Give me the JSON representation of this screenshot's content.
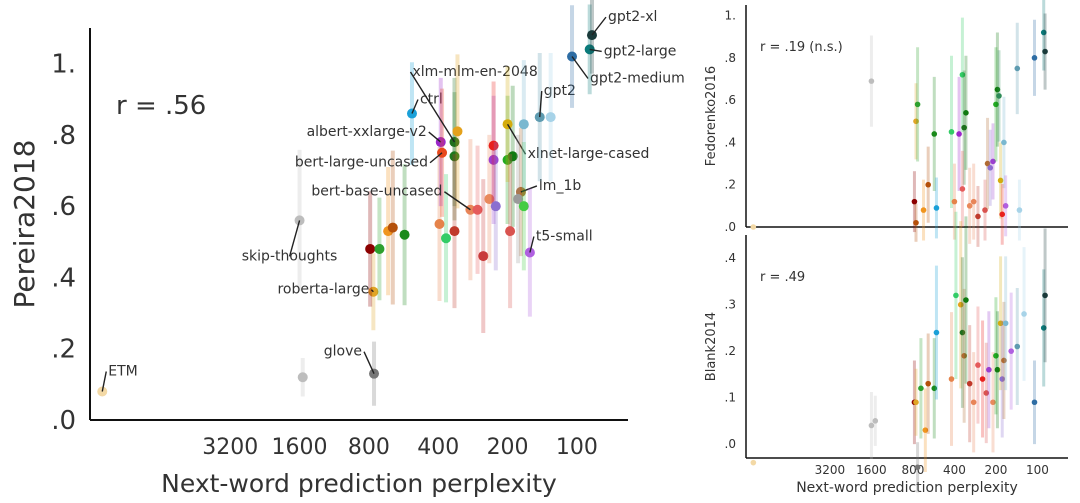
{
  "chart_data": [
    {
      "type": "scatter",
      "title": "",
      "xlabel": "Next-word prediction perplexity",
      "ylabel": "Pereira2018",
      "x_scale": "log-reversed",
      "x_ticks": [
        3200,
        1600,
        800,
        400,
        200,
        100
      ],
      "x_tick_labels": [
        "3200",
        "1600",
        "800",
        "400",
        "200",
        "100"
      ],
      "xlim": [
        13000,
        60
      ],
      "ylim": [
        0,
        1.1
      ],
      "y_ticks": [
        0,
        0.2,
        0.4,
        0.6,
        0.8,
        1.0
      ],
      "y_tick_labels": [
        ".0",
        ".2",
        ".4",
        ".6",
        ".8",
        "1."
      ],
      "annotation": "r = .56",
      "points": [
        {
          "x": 11500,
          "y": 0.08,
          "err": 0,
          "color": "#f3d9a6",
          "label": "ETM"
        },
        {
          "x": 1550,
          "y": 0.12,
          "err": 0.03,
          "color": "#bdbdbd",
          "label": ""
        },
        {
          "x": 1600,
          "y": 0.56,
          "err": 0.11,
          "color": "#bdbdbd",
          "label": "skip-thoughts"
        },
        {
          "x": 760,
          "y": 0.13,
          "err": 0.05,
          "color": "#777777",
          "label": "glove"
        },
        {
          "x": 765,
          "y": 0.36,
          "err": 0.06,
          "color": "#e0a526",
          "label": "roberta-large"
        },
        {
          "x": 790,
          "y": 0.48,
          "err": 0.09,
          "color": "#8b0000",
          "label": ""
        },
        {
          "x": 720,
          "y": 0.48,
          "err": 0.08,
          "color": "#2ea02e",
          "label": ""
        },
        {
          "x": 660,
          "y": 0.53,
          "err": 0.1,
          "color": "#f0951e",
          "label": ""
        },
        {
          "x": 630,
          "y": 0.54,
          "err": 0.12,
          "color": "#b4500a",
          "label": ""
        },
        {
          "x": 560,
          "y": 0.52,
          "err": 0.11,
          "color": "#1b8a1b",
          "label": ""
        },
        {
          "x": 520,
          "y": 0.86,
          "err": 0.08,
          "color": "#1aa0d8",
          "label": "ctrl"
        },
        {
          "x": 395,
          "y": 0.55,
          "err": 0.12,
          "color": "#e5834a",
          "label": ""
        },
        {
          "x": 370,
          "y": 0.51,
          "err": 0.1,
          "color": "#33cc66",
          "label": ""
        },
        {
          "x": 390,
          "y": 0.78,
          "err": 0.1,
          "color": "#9b27c9",
          "label": "albert-xxlarge-v2"
        },
        {
          "x": 385,
          "y": 0.75,
          "err": 0.1,
          "color": "#e8491d",
          "label": "bert-large-uncased"
        },
        {
          "x": 340,
          "y": 0.74,
          "err": 0.1,
          "color": "#1f7a1f",
          "label": ""
        },
        {
          "x": 340,
          "y": 0.78,
          "err": 0.1,
          "color": "#1f6f1f",
          "label": "xlm-mlm-en-2048"
        },
        {
          "x": 330,
          "y": 0.81,
          "err": 0.12,
          "color": "#e4a11b",
          "label": ""
        },
        {
          "x": 340,
          "y": 0.53,
          "err": 0.12,
          "color": "#c0392b",
          "label": ""
        },
        {
          "x": 290,
          "y": 0.59,
          "err": 0.11,
          "color": "#e88458",
          "label": "bert-base-uncased"
        },
        {
          "x": 270,
          "y": 0.59,
          "err": 0.1,
          "color": "#e55b5b",
          "label": ""
        },
        {
          "x": 255,
          "y": 0.46,
          "err": 0.12,
          "color": "#c83b3b",
          "label": ""
        },
        {
          "x": 240,
          "y": 0.62,
          "err": 0.1,
          "color": "#e9895c",
          "label": ""
        },
        {
          "x": 230,
          "y": 0.73,
          "err": 0.1,
          "color": "#9b3fd0",
          "label": ""
        },
        {
          "x": 230,
          "y": 0.77,
          "err": 0.1,
          "color": "#e8211d",
          "label": ""
        },
        {
          "x": 225,
          "y": 0.6,
          "err": 0.1,
          "color": "#8b6fd0",
          "label": ""
        },
        {
          "x": 200,
          "y": 0.73,
          "err": 0.1,
          "color": "#22aa22",
          "label": ""
        },
        {
          "x": 190,
          "y": 0.74,
          "err": 0.11,
          "color": "#117a11",
          "label": ""
        },
        {
          "x": 195,
          "y": 0.53,
          "err": 0.12,
          "color": "#d9534f",
          "label": ""
        },
        {
          "x": 200,
          "y": 0.83,
          "err": 0.09,
          "color": "#d4ac0d",
          "label": "xlnet-large-cased"
        },
        {
          "x": 175,
          "y": 0.64,
          "err": 0.1,
          "color": "#b06a32",
          "label": "lm_1b"
        },
        {
          "x": 180,
          "y": 0.62,
          "err": 0.1,
          "color": "#9a9a9a",
          "label": ""
        },
        {
          "x": 170,
          "y": 0.6,
          "err": 0.1,
          "color": "#44cc44",
          "label": ""
        },
        {
          "x": 160,
          "y": 0.47,
          "err": 0.1,
          "color": "#b060e0",
          "label": "t5-small"
        },
        {
          "x": 170,
          "y": 0.83,
          "err": 0.1,
          "color": "#7ab8d0",
          "label": ""
        },
        {
          "x": 145,
          "y": 0.85,
          "err": 0.1,
          "color": "#5e9bb0",
          "label": "gpt2"
        },
        {
          "x": 130,
          "y": 0.85,
          "err": 0.1,
          "color": "#a7d3e8",
          "label": ""
        },
        {
          "x": 105,
          "y": 1.02,
          "err": 0.08,
          "color": "#2e6da4",
          "label": "gpt2-medium"
        },
        {
          "x": 88,
          "y": 1.04,
          "err": 0.07,
          "color": "#0a7a7a",
          "label": "gpt2-large"
        },
        {
          "x": 86,
          "y": 1.08,
          "err": 0.06,
          "color": "#1a3a3a",
          "label": "gpt2-xl"
        }
      ]
    },
    {
      "type": "scatter",
      "title": "",
      "xlabel": "",
      "ylabel": "Fedorenko2016",
      "x_scale": "log-reversed",
      "xlim": [
        13000,
        60
      ],
      "ylim": [
        0,
        1.05
      ],
      "y_ticks": [
        0,
        0.2,
        0.4,
        0.6,
        0.8,
        1.0
      ],
      "y_tick_labels": [
        ".0",
        ".2",
        ".4",
        ".6",
        ".8",
        "1."
      ],
      "annotation": "r = .19 (n.s.)",
      "points": [
        {
          "x": 11500,
          "y": 0.0,
          "err": 0.0,
          "color": "#f3d9a6"
        },
        {
          "x": 1600,
          "y": 0.69,
          "err": 0.12,
          "color": "#bdbdbd"
        },
        {
          "x": 760,
          "y": 0.5,
          "err": 0.1,
          "color": "#e0a526"
        },
        {
          "x": 780,
          "y": 0.12,
          "err": 0.08,
          "color": "#8b0000"
        },
        {
          "x": 740,
          "y": 0.58,
          "err": 0.15,
          "color": "#2ea02e"
        },
        {
          "x": 760,
          "y": 0.02,
          "err": 0.05,
          "color": "#b4500a"
        },
        {
          "x": 670,
          "y": 0.08,
          "err": 0.08,
          "color": "#f0951e"
        },
        {
          "x": 620,
          "y": 0.2,
          "err": 0.1,
          "color": "#b4500a"
        },
        {
          "x": 560,
          "y": 0.44,
          "err": 0.15,
          "color": "#1b8a1b"
        },
        {
          "x": 540,
          "y": 0.09,
          "err": 0.08,
          "color": "#1aa0d8"
        },
        {
          "x": 420,
          "y": 0.45,
          "err": 0.2,
          "color": "#33cc66"
        },
        {
          "x": 400,
          "y": 0.12,
          "err": 0.1,
          "color": "#e5834a"
        },
        {
          "x": 370,
          "y": 0.44,
          "err": 0.15,
          "color": "#9b27c9"
        },
        {
          "x": 350,
          "y": 0.72,
          "err": 0.15,
          "color": "#33cc66"
        },
        {
          "x": 340,
          "y": 0.47,
          "err": 0.15,
          "color": "#1f6f1f"
        },
        {
          "x": 330,
          "y": 0.54,
          "err": 0.15,
          "color": "#117a11"
        },
        {
          "x": 350,
          "y": 0.18,
          "err": 0.1,
          "color": "#e55b5b"
        },
        {
          "x": 310,
          "y": 0.1,
          "err": 0.1,
          "color": "#e9895c"
        },
        {
          "x": 290,
          "y": 0.12,
          "err": 0.1,
          "color": "#e88458"
        },
        {
          "x": 270,
          "y": 0.05,
          "err": 0.08,
          "color": "#c0392b"
        },
        {
          "x": 240,
          "y": 0.08,
          "err": 0.08,
          "color": "#d9534f"
        },
        {
          "x": 230,
          "y": 0.3,
          "err": 0.12,
          "color": "#b06a32"
        },
        {
          "x": 220,
          "y": 0.28,
          "err": 0.1,
          "color": "#8b6fd0"
        },
        {
          "x": 210,
          "y": 0.31,
          "err": 0.1,
          "color": "#9b3fd0"
        },
        {
          "x": 200,
          "y": 0.58,
          "err": 0.15,
          "color": "#22aa22"
        },
        {
          "x": 195,
          "y": 0.65,
          "err": 0.15,
          "color": "#117a11"
        },
        {
          "x": 190,
          "y": 0.62,
          "err": 0.12,
          "color": "#2e8b57"
        },
        {
          "x": 185,
          "y": 0.22,
          "err": 0.1,
          "color": "#d4ac0d"
        },
        {
          "x": 175,
          "y": 0.4,
          "err": 0.12,
          "color": "#7ab8d0"
        },
        {
          "x": 170,
          "y": 0.1,
          "err": 0.08,
          "color": "#b060e0"
        },
        {
          "x": 180,
          "y": 0.06,
          "err": 0.08,
          "color": "#e8211d"
        },
        {
          "x": 140,
          "y": 0.75,
          "err": 0.12,
          "color": "#5e9bb0"
        },
        {
          "x": 135,
          "y": 0.08,
          "err": 0.08,
          "color": "#a7d3e8"
        },
        {
          "x": 105,
          "y": 0.8,
          "err": 0.1,
          "color": "#2e6da4"
        },
        {
          "x": 90,
          "y": 0.92,
          "err": 0.1,
          "color": "#0a7a7a"
        },
        {
          "x": 88,
          "y": 0.83,
          "err": 0.1,
          "color": "#1a3a3a"
        }
      ]
    },
    {
      "type": "scatter",
      "title": "",
      "xlabel": "Next-word prediction perplexity",
      "ylabel": "Blank2014",
      "x_scale": "log-reversed",
      "x_ticks": [
        3200,
        1600,
        800,
        400,
        200,
        100
      ],
      "x_tick_labels": [
        "3200",
        "1600",
        "800",
        "400",
        "200",
        "100"
      ],
      "xlim": [
        13000,
        60
      ],
      "ylim": [
        -0.03,
        0.45
      ],
      "y_ticks": [
        0,
        0.1,
        0.2,
        0.3,
        0.4
      ],
      "y_tick_labels": [
        ".0",
        ".1",
        ".2",
        ".3",
        ".4"
      ],
      "annotation": "r = .49",
      "points": [
        {
          "x": 11500,
          "y": -0.04,
          "err": 0.0,
          "color": "#f3d9a6"
        },
        {
          "x": 1600,
          "y": 0.04,
          "err": 0.04,
          "color": "#bdbdbd"
        },
        {
          "x": 1500,
          "y": 0.05,
          "err": 0.03,
          "color": "#bdbdbd"
        },
        {
          "x": 780,
          "y": 0.09,
          "err": 0.05,
          "color": "#8b0000"
        },
        {
          "x": 760,
          "y": 0.09,
          "err": 0.04,
          "color": "#e0a526"
        },
        {
          "x": 740,
          "y": -0.05,
          "err": 0.03,
          "color": "#777777"
        },
        {
          "x": 700,
          "y": 0.12,
          "err": 0.06,
          "color": "#2ea02e"
        },
        {
          "x": 650,
          "y": 0.03,
          "err": 0.05,
          "color": "#f0951e"
        },
        {
          "x": 620,
          "y": 0.13,
          "err": 0.06,
          "color": "#b4500a"
        },
        {
          "x": 560,
          "y": 0.12,
          "err": 0.06,
          "color": "#1b8a1b"
        },
        {
          "x": 540,
          "y": 0.24,
          "err": 0.08,
          "color": "#1aa0d8"
        },
        {
          "x": 420,
          "y": 0.14,
          "err": 0.08,
          "color": "#e5834a"
        },
        {
          "x": 390,
          "y": 0.32,
          "err": 0.1,
          "color": "#33cc66"
        },
        {
          "x": 360,
          "y": 0.3,
          "err": 0.1,
          "color": "#e4a11b"
        },
        {
          "x": 350,
          "y": 0.24,
          "err": 0.09,
          "color": "#1f6f1f"
        },
        {
          "x": 340,
          "y": 0.19,
          "err": 0.08,
          "color": "#b06a32"
        },
        {
          "x": 330,
          "y": 0.31,
          "err": 0.1,
          "color": "#117a11"
        },
        {
          "x": 310,
          "y": 0.13,
          "err": 0.07,
          "color": "#c0392b"
        },
        {
          "x": 290,
          "y": 0.09,
          "err": 0.06,
          "color": "#e88458"
        },
        {
          "x": 270,
          "y": 0.17,
          "err": 0.07,
          "color": "#e55b5b"
        },
        {
          "x": 250,
          "y": 0.14,
          "err": 0.07,
          "color": "#e8211d"
        },
        {
          "x": 235,
          "y": 0.11,
          "err": 0.06,
          "color": "#d9534f"
        },
        {
          "x": 225,
          "y": 0.16,
          "err": 0.07,
          "color": "#9b3fd0"
        },
        {
          "x": 210,
          "y": 0.09,
          "err": 0.06,
          "color": "#e9895c"
        },
        {
          "x": 200,
          "y": 0.19,
          "err": 0.07,
          "color": "#22aa22"
        },
        {
          "x": 195,
          "y": 0.16,
          "err": 0.07,
          "color": "#117a11"
        },
        {
          "x": 185,
          "y": 0.26,
          "err": 0.08,
          "color": "#d4ac0d"
        },
        {
          "x": 180,
          "y": 0.14,
          "err": 0.07,
          "color": "#8b6fd0"
        },
        {
          "x": 175,
          "y": 0.18,
          "err": 0.07,
          "color": "#b06a32"
        },
        {
          "x": 170,
          "y": 0.26,
          "err": 0.08,
          "color": "#7ab8d0"
        },
        {
          "x": 155,
          "y": 0.2,
          "err": 0.07,
          "color": "#b060e0"
        },
        {
          "x": 140,
          "y": 0.21,
          "err": 0.07,
          "color": "#5e9bb0"
        },
        {
          "x": 125,
          "y": 0.28,
          "err": 0.08,
          "color": "#a7d3e8"
        },
        {
          "x": 105,
          "y": 0.09,
          "err": 0.05,
          "color": "#2e6da4"
        },
        {
          "x": 90,
          "y": 0.25,
          "err": 0.07,
          "color": "#0a7a7a"
        },
        {
          "x": 88,
          "y": 0.32,
          "err": 0.08,
          "color": "#1a3a3a"
        }
      ]
    }
  ]
}
